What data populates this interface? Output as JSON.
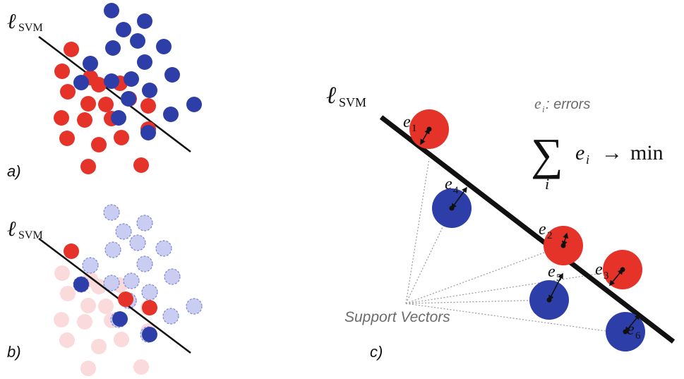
{
  "panel_labels": {
    "a": "a)",
    "b": "b)",
    "c": "c)"
  },
  "line_label": {
    "ell": "ℓ",
    "sub": "SVM"
  },
  "legend_text": {
    "var": "e",
    "sub": "i",
    "rest": ": errors"
  },
  "formula": {
    "sum": "∑",
    "index": "i",
    "term_var": "e",
    "term_sub": "i",
    "arrow": "→",
    "fn": "min"
  },
  "support_vectors_label": "Support Vectors",
  "errors": [
    {
      "name": "e",
      "sub": "1"
    },
    {
      "name": "e",
      "sub": "2"
    },
    {
      "name": "e",
      "sub": "3"
    },
    {
      "name": "e",
      "sub": "4"
    },
    {
      "name": "e",
      "sub": "5"
    },
    {
      "name": "e",
      "sub": "6"
    }
  ],
  "colors": {
    "red": "#e53329",
    "blue": "#2e3ea8",
    "faded_red": "#fadada",
    "faded_blue": "#c9cdf1",
    "faded_blue_stroke": "#7d86d4",
    "line": "#111111",
    "dotted": "#9a9a9a",
    "text_gray": "#6b6b6b"
  }
}
